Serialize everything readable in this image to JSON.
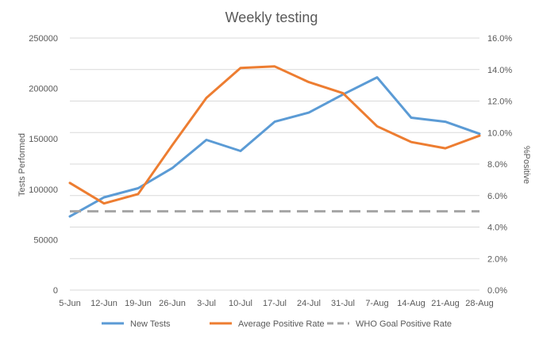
{
  "chart_data": {
    "type": "line",
    "title": "Weekly testing",
    "ylabel": "Tests Performed",
    "y2label": "%Positive",
    "categories": [
      "5-Jun",
      "12-Jun",
      "19-Jun",
      "26-Jun",
      "3-Jul",
      "10-Jul",
      "17-Jul",
      "24-Jul",
      "31-Jul",
      "7-Aug",
      "14-Aug",
      "21-Aug",
      "28-Aug"
    ],
    "ylim": [
      0,
      250000
    ],
    "y_ticks": [
      "0",
      "50000",
      "100000",
      "150000",
      "200000",
      "250000"
    ],
    "y2lim": [
      0,
      0.16
    ],
    "y2_ticks": [
      "0.0%",
      "2.0%",
      "4.0%",
      "6.0%",
      "8.0%",
      "10.0%",
      "12.0%",
      "14.0%",
      "16.0%"
    ],
    "grid": true,
    "legend_position": "bottom",
    "series": [
      {
        "name": "New Tests",
        "axis": "left",
        "color": "#5b9bd5",
        "dash": "solid",
        "values": [
          73000,
          92000,
          101000,
          121000,
          149000,
          138000,
          167000,
          176000,
          194000,
          211000,
          171000,
          167000,
          155000
        ]
      },
      {
        "name": "Average Positive Rate",
        "axis": "right",
        "color": "#ed7d31",
        "dash": "solid",
        "values": [
          0.068,
          0.055,
          0.061,
          0.092,
          0.122,
          0.141,
          0.142,
          0.132,
          0.125,
          0.104,
          0.094,
          0.09,
          0.098
        ]
      },
      {
        "name": "WHO Goal Positive Rate",
        "axis": "right",
        "color": "#a5a5a5",
        "dash": "dashed",
        "values": [
          0.05,
          0.05,
          0.05,
          0.05,
          0.05,
          0.05,
          0.05,
          0.05,
          0.05,
          0.05,
          0.05,
          0.05,
          0.05
        ]
      }
    ]
  }
}
